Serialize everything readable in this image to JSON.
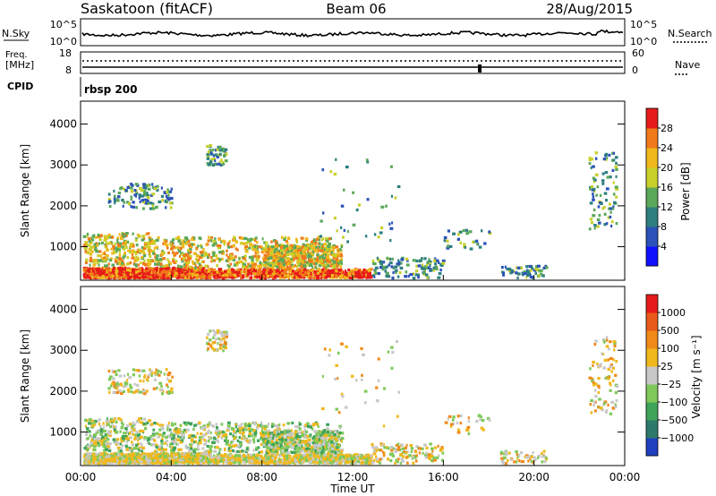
{
  "header": {
    "station": "Saskatoon (fitACF)",
    "beam": "Beam 06",
    "date": "28/Aug/2015"
  },
  "summary": {
    "left_labels": [
      "N.Sky",
      "Freq.",
      "[MHz]",
      "CPID"
    ],
    "right_labels": [
      "N.Search",
      "Nave"
    ],
    "nsky_ticks": [
      "10^5",
      "10^0"
    ],
    "nsearch_ticks": [
      "10^5",
      "10^0"
    ],
    "freq_ticks": [
      "18",
      "8"
    ],
    "nave_ticks": [
      "60",
      "0"
    ],
    "cpid_label": "rbsp 200"
  },
  "chart_data": [
    {
      "type": "heatmap",
      "name": "power",
      "ylabel": "Slant Range [km]",
      "ytick_labels": [
        "1000",
        "2000",
        "3000",
        "4000"
      ],
      "yticks": [
        1000,
        2000,
        3000,
        4000
      ],
      "ylim": [
        180,
        4560
      ],
      "xlim": [
        0,
        24
      ],
      "colorbar": {
        "label": "Power [dB]",
        "tick_labels": [
          "4",
          "8",
          "12",
          "16",
          "20",
          "24",
          "28"
        ],
        "colors": [
          "#1010ff",
          "#2a52b8",
          "#2e7f7f",
          "#5aa85a",
          "#c8d02a",
          "#f0b81c",
          "#f07a1a",
          "#e61a1a"
        ]
      }
    },
    {
      "type": "heatmap",
      "name": "velocity",
      "ylabel": "Slant Range [km]",
      "ytick_labels": [
        "1000",
        "2000",
        "3000",
        "4000"
      ],
      "yticks": [
        1000,
        2000,
        3000,
        4000
      ],
      "ylim": [
        180,
        4560
      ],
      "xlim": [
        0,
        24
      ],
      "xlabel": "Time UT",
      "xtick_labels": [
        "00:00",
        "04:00",
        "08:00",
        "12:00",
        "16:00",
        "20:00",
        "00:00"
      ],
      "colorbar": {
        "label": "Velocity [m s⁻¹]",
        "tick_labels": [
          "1000",
          "500",
          "100",
          "25",
          "−25",
          "−100",
          "−500",
          "−1000"
        ],
        "colors": [
          "#2040c0",
          "#2e7a6a",
          "#3fa35a",
          "#7fc95a",
          "#c8c8c8",
          "#f0b81c",
          "#f08a1a",
          "#e85a1a",
          "#e61a1a"
        ]
      }
    }
  ]
}
